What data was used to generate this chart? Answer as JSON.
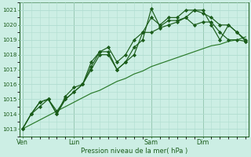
{
  "xlabel": "Pression niveau de la mer( hPa )",
  "ylim": [
    1012.5,
    1021.5
  ],
  "yticks": [
    1013,
    1014,
    1015,
    1016,
    1017,
    1018,
    1019,
    1020,
    1021
  ],
  "bg_color": "#cceee4",
  "grid_color": "#b0ddd0",
  "line_color_dark": "#1a5c1a",
  "line_color_mid": "#2a7a2a",
  "xtick_labels": [
    "Ven",
    "Lun",
    "Sam",
    "Dim"
  ],
  "xtick_positions": [
    0,
    6,
    15,
    21
  ],
  "num_points": 27,
  "series1": [
    1013.0,
    1014.0,
    1014.8,
    1015.0,
    1014.0,
    1015.0,
    1015.5,
    1016.0,
    1017.2,
    1018.2,
    1018.2,
    1017.0,
    1017.5,
    1018.5,
    1019.0,
    1021.1,
    1019.9,
    1020.3,
    1020.3,
    1020.5,
    1021.0,
    1021.0,
    1020.0,
    1019.0,
    1020.0,
    1019.5,
    1018.9
  ],
  "series2": [
    1013.0,
    1014.0,
    1014.8,
    1015.0,
    1014.0,
    1015.2,
    1015.8,
    1016.0,
    1017.5,
    1018.2,
    1018.5,
    1017.5,
    1018.0,
    1019.0,
    1019.5,
    1020.5,
    1020.0,
    1020.5,
    1020.5,
    1021.0,
    1021.0,
    1020.8,
    1020.5,
    1020.0,
    1020.0,
    1019.5,
    1019.0
  ],
  "series3": [
    1013.0,
    1014.0,
    1014.5,
    1015.0,
    1014.2,
    1015.0,
    1015.5,
    1016.0,
    1017.0,
    1018.0,
    1018.0,
    1017.0,
    1017.5,
    1018.0,
    1019.5,
    1019.5,
    1019.8,
    1020.0,
    1020.2,
    1020.5,
    1020.0,
    1020.2,
    1020.2,
    1019.5,
    1019.0,
    1019.0,
    1018.9
  ],
  "series_trend": [
    1013.0,
    1013.3,
    1013.6,
    1013.9,
    1014.2,
    1014.5,
    1014.8,
    1015.1,
    1015.4,
    1015.6,
    1015.9,
    1016.2,
    1016.4,
    1016.7,
    1016.9,
    1017.2,
    1017.4,
    1017.6,
    1017.8,
    1018.0,
    1018.2,
    1018.4,
    1018.6,
    1018.7,
    1018.9,
    1019.0,
    1019.2
  ],
  "vline_positions": [
    0,
    6,
    15,
    21
  ],
  "vline_color": "#2a6a2a"
}
